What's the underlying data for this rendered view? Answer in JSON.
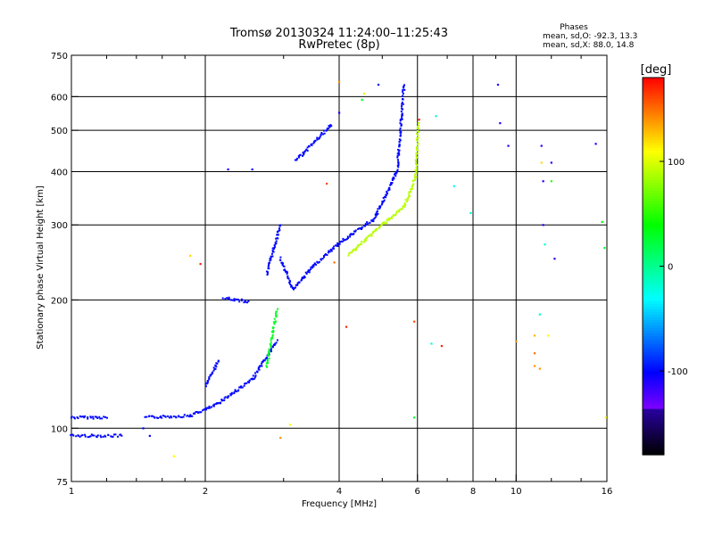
{
  "title": "Tromsø 20130324 11:24:00–11:25:43",
  "subtitle": "RwPretec (8p)",
  "stats": {
    "heading": "Phases",
    "o_line": "mean, sd,O: -92.3, 13.3",
    "x_line": "mean, sd,X:  88.0, 14.8"
  },
  "chart_data": {
    "type": "scatter",
    "xlabel": "Frequency [MHz]",
    "ylabel": "Stationary phase Virtual Height [km]",
    "xscale": "log",
    "yscale": "log",
    "xlim": [
      1,
      16
    ],
    "ylim": [
      75,
      750
    ],
    "x_ticks": [
      1,
      2,
      4,
      6,
      8,
      10,
      16
    ],
    "x_tick_labels": [
      "1",
      "2",
      "4",
      "6",
      "8",
      "10",
      "16"
    ],
    "x_gridlines": [
      2,
      4,
      6,
      8,
      10
    ],
    "y_ticks": [
      75,
      100,
      200,
      300,
      400,
      500,
      600,
      750
    ],
    "y_tick_labels": [
      "75",
      "100",
      "200",
      "300",
      "400",
      "500",
      "600",
      "750"
    ],
    "y_gridlines": [
      100,
      200,
      300,
      400,
      500,
      600
    ],
    "grid": true,
    "colorbar": {
      "label": "[deg]",
      "min": -180,
      "max": 180,
      "ticks": [
        100,
        0,
        -100
      ],
      "tick_labels": [
        "100",
        "0",
        "-100"
      ]
    },
    "series": [
      {
        "color_phase": -100,
        "traces": [
          {
            "f0": 1.0,
            "f1": 1.2,
            "h0": 106,
            "h1": 106
          },
          {
            "f0": 1.0,
            "f1": 1.3,
            "h0": 96,
            "h1": 96
          },
          {
            "f0": 1.47,
            "f1": 1.85,
            "h0": 106,
            "h1": 107
          },
          {
            "f0": 1.85,
            "f1": 2.1,
            "h0": 107,
            "h1": 113
          },
          {
            "f0": 2.1,
            "f1": 2.55,
            "h0": 113,
            "h1": 130
          },
          {
            "f0": 2.55,
            "f1": 2.9,
            "h0": 130,
            "h1": 160
          },
          {
            "f0": 2.0,
            "f1": 2.15,
            "h0": 126,
            "h1": 144
          },
          {
            "f0": 2.2,
            "f1": 2.5,
            "h0": 202,
            "h1": 198
          },
          {
            "f0": 2.75,
            "f1": 2.95,
            "h0": 230,
            "h1": 300
          },
          {
            "f0": 2.95,
            "f1": 3.15,
            "h0": 250,
            "h1": 212
          },
          {
            "f0": 3.15,
            "f1": 3.5,
            "h0": 212,
            "h1": 240
          },
          {
            "f0": 3.5,
            "f1": 4.0,
            "h0": 240,
            "h1": 272
          },
          {
            "f0": 4.0,
            "f1": 4.8,
            "h0": 272,
            "h1": 310
          },
          {
            "f0": 4.8,
            "f1": 5.4,
            "h0": 310,
            "h1": 400
          },
          {
            "f0": 5.4,
            "f1": 5.6,
            "h0": 400,
            "h1": 640
          },
          {
            "f0": 3.2,
            "f1": 3.85,
            "h0": 425,
            "h1": 515
          }
        ]
      },
      {
        "color_phase": 90,
        "traces": [
          {
            "f0": 4.2,
            "f1": 4.9,
            "h0": 255,
            "h1": 295
          },
          {
            "f0": 4.9,
            "f1": 5.6,
            "h0": 295,
            "h1": 330
          },
          {
            "f0": 5.6,
            "f1": 5.95,
            "h0": 330,
            "h1": 390
          },
          {
            "f0": 5.95,
            "f1": 6.02,
            "h0": 390,
            "h1": 520
          }
        ]
      },
      {
        "color_phase": 30,
        "traces": [
          {
            "f0": 2.75,
            "f1": 2.9,
            "h0": 140,
            "h1": 190
          }
        ]
      }
    ],
    "scatter_points": [
      {
        "x": 1.45,
        "y": 100,
        "phase": -100
      },
      {
        "x": 1.5,
        "y": 96,
        "phase": -100
      },
      {
        "x": 1.7,
        "y": 86,
        "phase": 110
      },
      {
        "x": 1.85,
        "y": 254,
        "phase": 120
      },
      {
        "x": 1.95,
        "y": 243,
        "phase": 170
      },
      {
        "x": 2.25,
        "y": 405,
        "phase": -110
      },
      {
        "x": 2.55,
        "y": 405,
        "phase": -110
      },
      {
        "x": 2.95,
        "y": 95,
        "phase": 140
      },
      {
        "x": 3.1,
        "y": 102,
        "phase": 110
      },
      {
        "x": 3.75,
        "y": 375,
        "phase": 160
      },
      {
        "x": 3.9,
        "y": 245,
        "phase": 150
      },
      {
        "x": 4.0,
        "y": 550,
        "phase": -110
      },
      {
        "x": 4.0,
        "y": 650,
        "phase": 140
      },
      {
        "x": 4.15,
        "y": 173,
        "phase": 170
      },
      {
        "x": 4.5,
        "y": 590,
        "phase": 30
      },
      {
        "x": 4.55,
        "y": 610,
        "phase": 100
      },
      {
        "x": 4.9,
        "y": 640,
        "phase": -100
      },
      {
        "x": 5.9,
        "y": 178,
        "phase": 160
      },
      {
        "x": 5.9,
        "y": 106,
        "phase": 30
      },
      {
        "x": 6.05,
        "y": 530,
        "phase": 170
      },
      {
        "x": 6.45,
        "y": 158,
        "phase": -20
      },
      {
        "x": 6.6,
        "y": 540,
        "phase": -20
      },
      {
        "x": 6.8,
        "y": 156,
        "phase": 170
      },
      {
        "x": 7.25,
        "y": 370,
        "phase": -30
      },
      {
        "x": 7.9,
        "y": 320,
        "phase": -20
      },
      {
        "x": 9.1,
        "y": 640,
        "phase": -110
      },
      {
        "x": 9.2,
        "y": 520,
        "phase": -110
      },
      {
        "x": 9.6,
        "y": 460,
        "phase": -110
      },
      {
        "x": 10.0,
        "y": 160,
        "phase": 140
      },
      {
        "x": 11.0,
        "y": 165,
        "phase": 130
      },
      {
        "x": 11.0,
        "y": 150,
        "phase": 150
      },
      {
        "x": 11.0,
        "y": 140,
        "phase": 140
      },
      {
        "x": 11.3,
        "y": 138,
        "phase": 140
      },
      {
        "x": 11.3,
        "y": 185,
        "phase": -20
      },
      {
        "x": 11.4,
        "y": 460,
        "phase": -110
      },
      {
        "x": 11.4,
        "y": 420,
        "phase": 120
      },
      {
        "x": 11.5,
        "y": 380,
        "phase": -110
      },
      {
        "x": 11.5,
        "y": 300,
        "phase": -110
      },
      {
        "x": 11.6,
        "y": 270,
        "phase": -20
      },
      {
        "x": 11.8,
        "y": 165,
        "phase": 110
      },
      {
        "x": 12.0,
        "y": 420,
        "phase": -110
      },
      {
        "x": 12.0,
        "y": 380,
        "phase": 50
      },
      {
        "x": 12.2,
        "y": 250,
        "phase": -110
      },
      {
        "x": 15.1,
        "y": 465,
        "phase": -110
      },
      {
        "x": 15.6,
        "y": 305,
        "phase": 40
      },
      {
        "x": 15.8,
        "y": 265,
        "phase": 30
      },
      {
        "x": 15.9,
        "y": 106,
        "phase": 110
      }
    ]
  }
}
